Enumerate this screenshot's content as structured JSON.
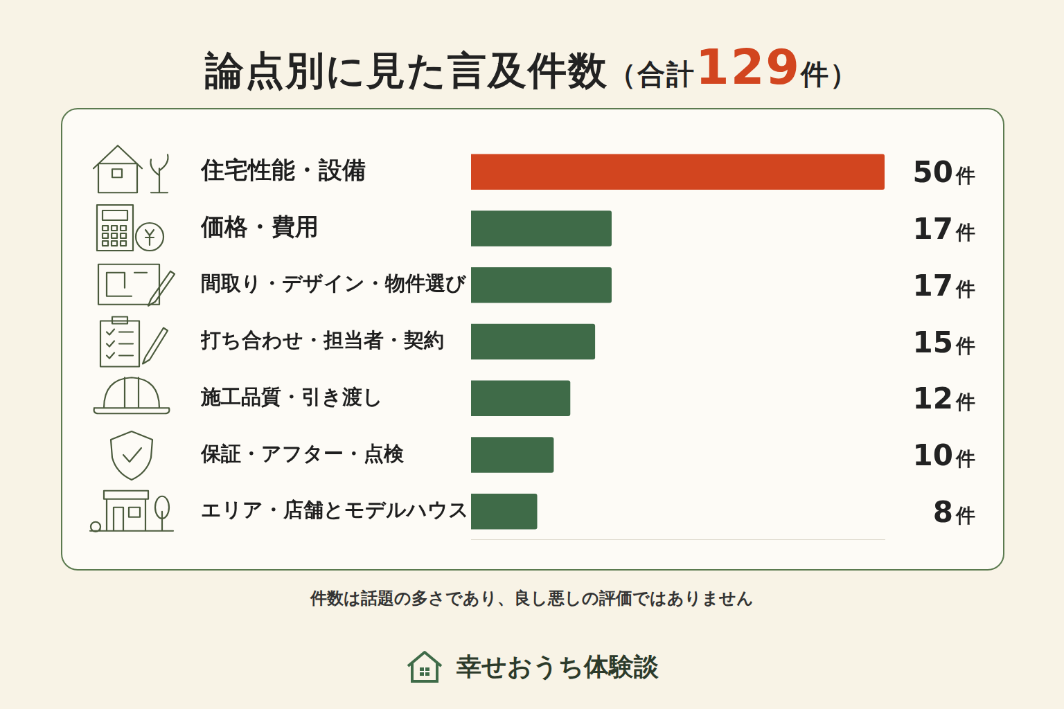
{
  "chart_data": {
    "type": "bar",
    "orientation": "horizontal",
    "title": "論点別に見た言及件数（合計129件）",
    "note": "件数は話題の多さであり、良し悪しの評価ではありません",
    "source": "幸せおうち体験談",
    "categories": [
      "住宅性能・設備",
      "価格・費用",
      "間取り・デザイン・物件選び",
      "打ち合わせ・担当者・契約",
      "施工品質・引き渡し",
      "保証・アフター・点検",
      "エリア・店舗とモデルハウス"
    ],
    "values": [
      50,
      17,
      17,
      15,
      12,
      10,
      8
    ],
    "value_labels": [
      "50件",
      "17件",
      "17件",
      "15件",
      "12件",
      "10件",
      "8件"
    ],
    "colors": [
      "#d2451f",
      "#3f6b48",
      "#3f6b48",
      "#3f6b48",
      "#3f6b48",
      "#3f6b48",
      "#3f6b48"
    ],
    "xlim": [
      0,
      50
    ],
    "xticks": [],
    "grid": false,
    "data_labels": true,
    "tick_labels": "y"
  }
}
